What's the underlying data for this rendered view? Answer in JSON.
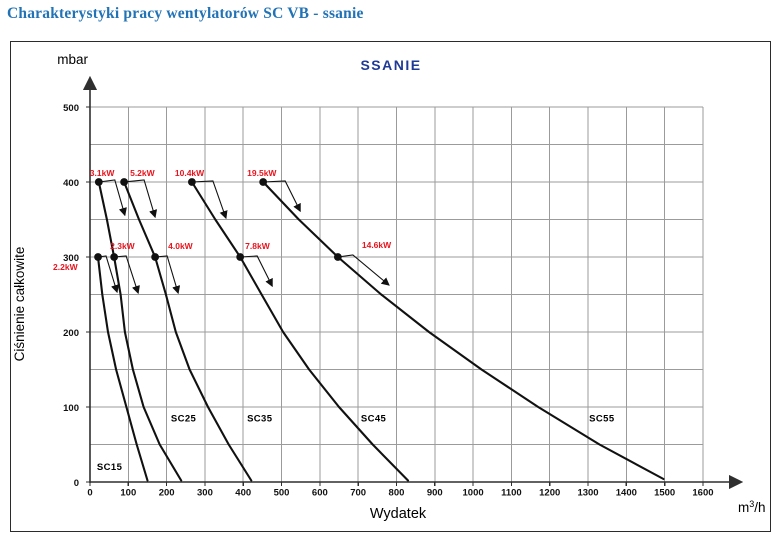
{
  "page": {
    "title": "Charakterystyki pracy wentylatorów SC VB - ssanie"
  },
  "colors": {
    "title_blue": "#2273b6",
    "chart_title_navy": "#1e3a96",
    "power_red": "#e8141e",
    "curve_black": "#111111",
    "grid_gray": "#9b9b9b",
    "axis_dark": "#2f2f2f",
    "tick_text": "#111111"
  },
  "chart_data": {
    "type": "line",
    "title": "SSANIE",
    "xlabel": "Wydatek",
    "x_unit_parts": [
      "m",
      "3",
      "/h"
    ],
    "ylabel": "Ciśnienie całkowite",
    "y_unit": "mbar",
    "xlim": [
      0,
      1600
    ],
    "ylim": [
      0,
      500
    ],
    "x_grid_step": 100,
    "y_grid_step": 50,
    "x_ticks": [
      0,
      100,
      200,
      300,
      400,
      500,
      600,
      700,
      800,
      900,
      1000,
      1100,
      1200,
      1300,
      1400,
      1500,
      1600
    ],
    "y_ticks": [
      0,
      100,
      200,
      300,
      400,
      500
    ],
    "legend": "labels drawn beside curves",
    "series": [
      {
        "name": "SC15",
        "name_label_at": [
          18,
          16
        ],
        "points": [
          [
            21,
            300
          ],
          [
            32,
            250
          ],
          [
            47,
            200
          ],
          [
            68,
            150
          ],
          [
            95,
            100
          ],
          [
            122,
            50
          ],
          [
            150,
            2
          ]
        ],
        "operating_points": [
          {
            "power": "2.2kW",
            "flow": 21,
            "pressure": 300,
            "label_offset": [
              -45,
              13
            ],
            "label_anchor": "start",
            "arrow": [
              8,
              -1,
              19,
              35
            ]
          }
        ]
      },
      {
        "name": "SC25",
        "name_label_at": [
          211,
          81
        ],
        "points": [
          [
            23,
            400
          ],
          [
            44,
            350
          ],
          [
            63,
            300
          ],
          [
            80,
            250
          ],
          [
            91,
            200
          ],
          [
            112,
            150
          ],
          [
            140,
            100
          ],
          [
            182,
            50
          ],
          [
            238,
            2
          ]
        ],
        "operating_points": [
          {
            "power": "3.1kW",
            "flow": 23,
            "pressure": 400,
            "label_offset": [
              -9,
              -6
            ],
            "label_anchor": "start",
            "arrow": [
              16,
              -2,
              26,
              33
            ]
          },
          {
            "power": "2.3kW",
            "flow": 63,
            "pressure": 300,
            "label_offset": [
              -4,
              -8
            ],
            "label_anchor": "start",
            "arrow": [
              12,
              -1,
              24,
              36
            ]
          }
        ]
      },
      {
        "name": "SC35",
        "name_label_at": [
          410,
          81
        ],
        "points": [
          [
            89,
            400
          ],
          [
            128,
            350
          ],
          [
            170,
            300
          ],
          [
            198,
            250
          ],
          [
            224,
            200
          ],
          [
            260,
            150
          ],
          [
            308,
            100
          ],
          [
            362,
            50
          ],
          [
            421,
            2
          ]
        ],
        "operating_points": [
          {
            "power": "5.2kW",
            "flow": 89,
            "pressure": 400,
            "label_offset": [
              6,
              -6
            ],
            "label_anchor": "start",
            "arrow": [
              20,
              -2,
              31,
              35
            ]
          },
          {
            "power": "4.0kW",
            "flow": 170,
            "pressure": 300,
            "label_offset": [
              13,
              -8
            ],
            "label_anchor": "start",
            "arrow": [
              12,
              -1,
              23,
              36
            ]
          }
        ]
      },
      {
        "name": "SC45",
        "name_label_at": [
          707,
          81
        ],
        "points": [
          [
            266,
            400
          ],
          [
            327,
            350
          ],
          [
            392,
            300
          ],
          [
            448,
            250
          ],
          [
            504,
            200
          ],
          [
            572,
            150
          ],
          [
            650,
            100
          ],
          [
            738,
            50
          ],
          [
            830,
            2
          ]
        ],
        "operating_points": [
          {
            "power": "10.4kW",
            "flow": 266,
            "pressure": 400,
            "label_offset": [
              -17,
              -6
            ],
            "label_anchor": "start",
            "arrow": [
              21,
              -1,
              34,
              36
            ]
          },
          {
            "power": "7.8kW",
            "flow": 392,
            "pressure": 300,
            "label_offset": [
              5,
              -8
            ],
            "label_anchor": "start",
            "arrow": [
              17,
              -1,
              32,
              29
            ]
          }
        ]
      },
      {
        "name": "SC55",
        "name_label_at": [
          1303,
          81
        ],
        "points": [
          [
            452,
            400
          ],
          [
            545,
            350
          ],
          [
            647,
            300
          ],
          [
            760,
            250
          ],
          [
            885,
            200
          ],
          [
            1022,
            150
          ],
          [
            1170,
            100
          ],
          [
            1330,
            50
          ],
          [
            1497,
            4
          ]
        ],
        "operating_points": [
          {
            "power": "19.5kW",
            "flow": 452,
            "pressure": 400,
            "label_offset": [
              -16,
              -6
            ],
            "label_anchor": "start",
            "arrow": [
              22,
              -1,
              37,
              29
            ]
          },
          {
            "power": "14.6kW",
            "flow": 647,
            "pressure": 300,
            "label_offset": [
              24,
              -9
            ],
            "label_anchor": "start",
            "arrow": [
              15,
              -2,
              51,
              28
            ]
          }
        ]
      }
    ]
  }
}
